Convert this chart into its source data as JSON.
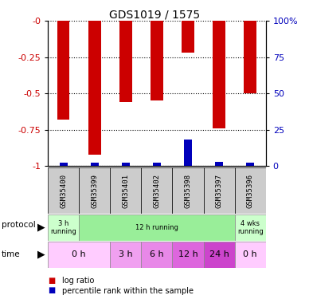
{
  "title": "GDS1019 / 1575",
  "samples": [
    "GSM35400",
    "GSM35399",
    "GSM35401",
    "GSM35402",
    "GSM35398",
    "GSM35397",
    "GSM35396"
  ],
  "log_ratio": [
    -0.68,
    -0.92,
    -0.56,
    -0.55,
    -0.22,
    -0.74,
    -0.5
  ],
  "percentile_rank_pct": [
    2.0,
    2.0,
    2.0,
    2.0,
    18.0,
    3.0,
    2.0
  ],
  "ylim_left": [
    -1.0,
    0.0
  ],
  "ylim_right": [
    0,
    100
  ],
  "yticks_left": [
    -1.0,
    -0.75,
    -0.5,
    -0.25,
    0.0
  ],
  "yticks_right": [
    0,
    25,
    50,
    75,
    100
  ],
  "ytick_labels_left": [
    "-1",
    "-0.75",
    "-0.5",
    "-0.25",
    "-0"
  ],
  "ytick_labels_right": [
    "0",
    "25",
    "50",
    "75",
    "100%"
  ],
  "bar_color_red": "#cc0000",
  "bar_color_blue": "#0000bb",
  "bar_width": 0.4,
  "blue_bar_width": 0.25,
  "protocol_row": [
    {
      "label": "3 h\nrunning",
      "span": [
        0,
        1
      ],
      "color": "#ccffcc"
    },
    {
      "label": "12 h running",
      "span": [
        1,
        6
      ],
      "color": "#99ee99"
    },
    {
      "label": "4 wks\nrunning",
      "span": [
        6,
        7
      ],
      "color": "#ccffcc"
    }
  ],
  "time_row": [
    {
      "label": "0 h",
      "span": [
        0,
        2
      ],
      "color": "#ffccff"
    },
    {
      "label": "3 h",
      "span": [
        2,
        3
      ],
      "color": "#f0a0f0"
    },
    {
      "label": "6 h",
      "span": [
        3,
        4
      ],
      "color": "#e888e8"
    },
    {
      "label": "12 h",
      "span": [
        4,
        5
      ],
      "color": "#dd66dd"
    },
    {
      "label": "24 h",
      "span": [
        5,
        6
      ],
      "color": "#cc44cc"
    },
    {
      "label": "0 h",
      "span": [
        6,
        7
      ],
      "color": "#ffccff"
    }
  ],
  "legend_red_label": "log ratio",
  "legend_blue_label": "percentile rank within the sample",
  "left_tick_color": "#cc0000",
  "right_tick_color": "#0000bb",
  "sample_box_color": "#cccccc",
  "fig_bg": "#ffffff"
}
